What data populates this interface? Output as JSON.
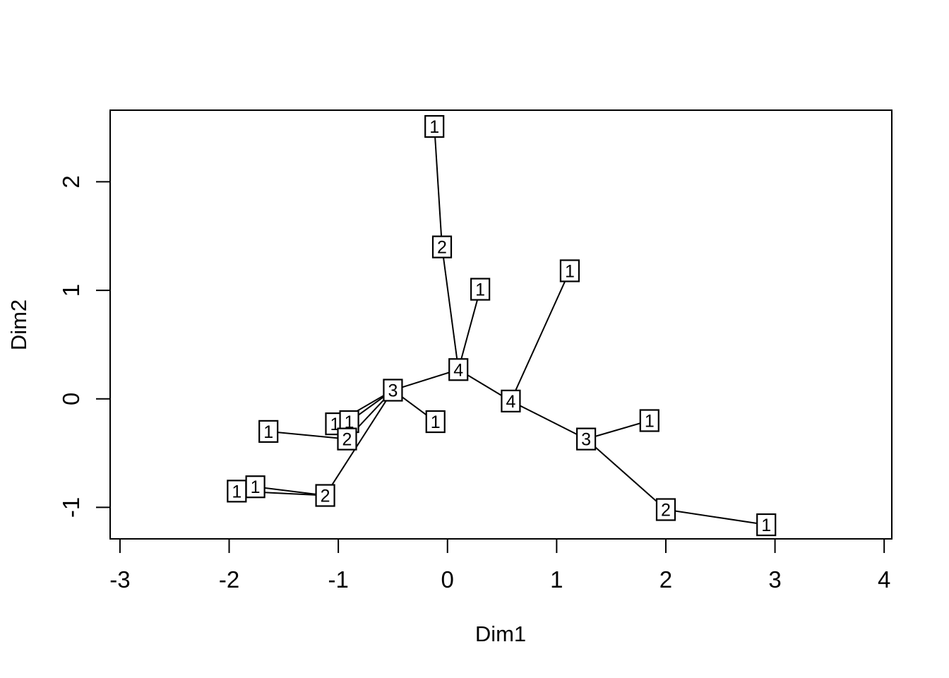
{
  "figure": {
    "background_color": "#ffffff",
    "foreground_color": "#000000",
    "node_fill_color": "#ffffff"
  },
  "chart_data": {
    "type": "scatter",
    "subtype": "network-spanning-tree-with-boxed-labels",
    "title": "",
    "xlabel": "Dim1",
    "ylabel": "Dim2",
    "xlim": [
      -3.09,
      4.07
    ],
    "ylim": [
      -1.29,
      2.66
    ],
    "xticks": [
      -3,
      -2,
      -1,
      0,
      1,
      2,
      3,
      4
    ],
    "yticks": [
      -1,
      0,
      1,
      2
    ],
    "grid": false,
    "legend": null,
    "nodes": [
      {
        "label": "1",
        "x": -0.12,
        "y": 2.51
      },
      {
        "label": "2",
        "x": -0.05,
        "y": 1.4
      },
      {
        "label": "1",
        "x": 0.3,
        "y": 1.01
      },
      {
        "label": "1",
        "x": 1.12,
        "y": 1.18
      },
      {
        "label": "4",
        "x": 0.1,
        "y": 0.27
      },
      {
        "label": "4",
        "x": 0.58,
        "y": -0.02
      },
      {
        "label": "3",
        "x": -0.5,
        "y": 0.08
      },
      {
        "label": "1",
        "x": -0.11,
        "y": -0.21
      },
      {
        "label": "3",
        "x": 1.27,
        "y": -0.37
      },
      {
        "label": "1",
        "x": 1.85,
        "y": -0.2
      },
      {
        "label": "2",
        "x": 2.0,
        "y": -1.02
      },
      {
        "label": "1",
        "x": 2.92,
        "y": -1.16
      },
      {
        "label": "1",
        "x": -1.64,
        "y": -0.3
      },
      {
        "label": "1",
        "x": -1.03,
        "y": -0.23
      },
      {
        "label": "1",
        "x": -0.9,
        "y": -0.21
      },
      {
        "label": "2",
        "x": -0.92,
        "y": -0.37
      },
      {
        "label": "1",
        "x": -1.93,
        "y": -0.85
      },
      {
        "label": "1",
        "x": -1.76,
        "y": -0.81
      },
      {
        "label": "2",
        "x": -1.12,
        "y": -0.89
      }
    ],
    "edges": [
      [
        0,
        1
      ],
      [
        1,
        4
      ],
      [
        2,
        4
      ],
      [
        3,
        5
      ],
      [
        4,
        5
      ],
      [
        4,
        6
      ],
      [
        5,
        8
      ],
      [
        6,
        7
      ],
      [
        6,
        13
      ],
      [
        6,
        14
      ],
      [
        6,
        15
      ],
      [
        6,
        18
      ],
      [
        8,
        9
      ],
      [
        8,
        10
      ],
      [
        10,
        11
      ],
      [
        12,
        15
      ],
      [
        16,
        18
      ],
      [
        17,
        18
      ]
    ]
  }
}
